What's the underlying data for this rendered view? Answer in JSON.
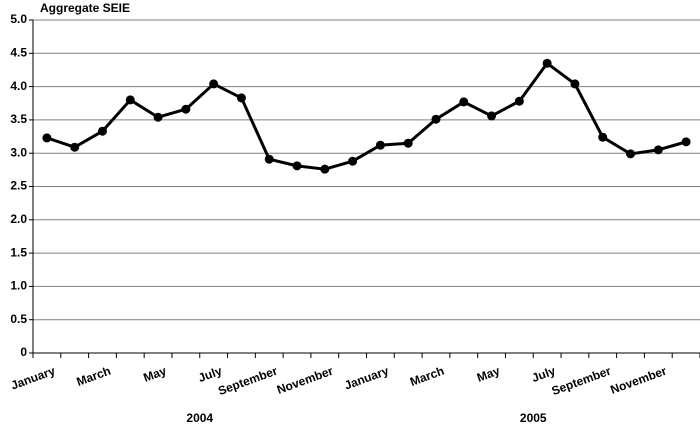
{
  "chart_data": {
    "type": "line",
    "title": "Aggregate SEIE",
    "categories": [
      "January",
      null,
      "March",
      null,
      "May",
      null,
      "July",
      null,
      "September",
      null,
      "November",
      null,
      "January",
      null,
      "March",
      null,
      "May",
      null,
      "July",
      null,
      "September",
      null,
      "November",
      null
    ],
    "x_groups": [
      "2004",
      "2005"
    ],
    "series": [
      {
        "color": "#000000",
        "values": [
          3.23,
          3.09,
          3.33,
          3.8,
          3.54,
          3.66,
          4.04,
          3.83,
          2.91,
          2.81,
          2.76,
          2.88,
          3.12,
          3.15,
          3.51,
          3.77,
          3.56,
          3.78,
          4.35,
          4.04,
          3.24,
          2.99,
          3.05,
          3.17
        ]
      }
    ],
    "ylim": [
      0,
      5
    ],
    "yticks": [
      0,
      0.5,
      {
        "value": 1,
        "label": "1.0"
      },
      1.5,
      {
        "value": 2,
        "label": "2.0"
      },
      2.5,
      {
        "value": 3,
        "label": "3.0"
      },
      3.5,
      {
        "value": 4,
        "label": "4.0"
      },
      4.5,
      {
        "value": 5,
        "label": "5.0"
      }
    ],
    "grid": true
  }
}
